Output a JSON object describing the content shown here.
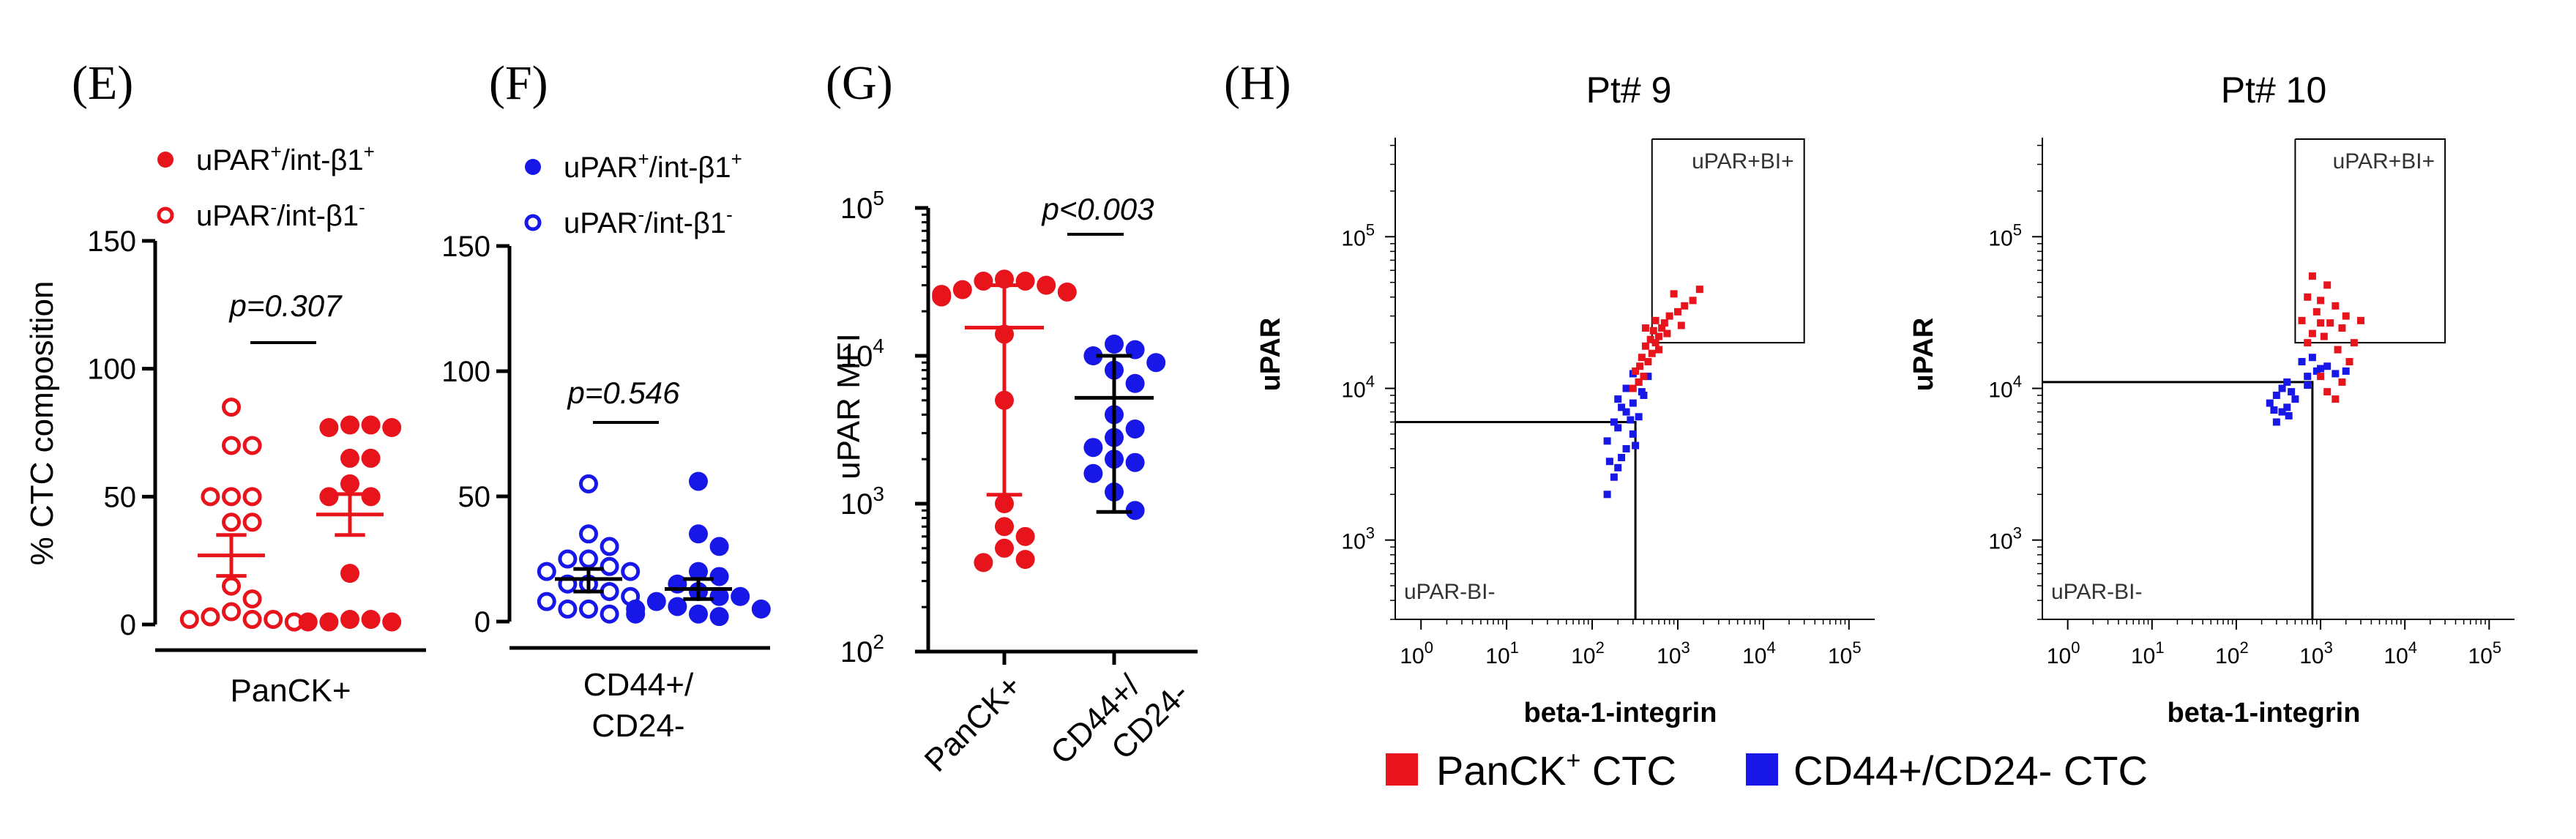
{
  "chart_data": [
    {
      "panel_label": "(E)",
      "type": "scatter",
      "ylabel": "% CTC composition",
      "ylim": [
        0,
        150
      ],
      "yticks": [
        "0",
        "50",
        "100",
        "150"
      ],
      "xlabel": "PanCK+",
      "legend": [
        {
          "label": "uPAR",
          "sup": "+",
          "mid": "/int-β1",
          "sup2": "+",
          "marker": "filled",
          "color": "#e8141c"
        },
        {
          "label": "uPAR",
          "sup": "-",
          "mid": "/int-β1",
          "sup2": "-",
          "marker": "open",
          "color": "#e8141c"
        }
      ],
      "annotation": "p=0.307",
      "series": [
        {
          "name": "uPAR-/int-β1-",
          "marker": "open",
          "color": "#e8141c",
          "values": [
            85,
            70,
            70,
            50,
            50,
            50,
            40,
            40,
            15,
            10,
            5,
            3,
            2,
            2,
            2,
            1
          ],
          "mean": 27,
          "sem_low": 19,
          "sem_high": 35
        },
        {
          "name": "uPAR+/int-β1+",
          "marker": "filled",
          "color": "#e8141c",
          "values": [
            78,
            78,
            77,
            77,
            65,
            65,
            55,
            50,
            50,
            20,
            2,
            2,
            1,
            1,
            1
          ],
          "mean": 43,
          "sem_low": 35,
          "sem_high": 51
        }
      ]
    },
    {
      "panel_label": "(F)",
      "type": "scatter",
      "ylim": [
        0,
        150
      ],
      "yticks": [
        "0",
        "50",
        "100",
        "150"
      ],
      "xlabel_lines": [
        "CD44+/",
        "CD24-"
      ],
      "legend": [
        {
          "label": "uPAR",
          "sup": "+",
          "mid": "/int-β1",
          "sup2": "+",
          "marker": "filled",
          "color": "#1717e8"
        },
        {
          "label": "uPAR",
          "sup": "-",
          "mid": "/int-β1",
          "sup2": "-",
          "marker": "open",
          "color": "#1717e8"
        }
      ],
      "annotation": "p=0.546",
      "series": [
        {
          "name": "uPAR-/int-β1-",
          "marker": "open",
          "color": "#1717e8",
          "values": [
            55,
            35,
            30,
            25,
            25,
            22,
            20,
            20,
            15,
            15,
            12,
            10,
            8,
            5,
            5,
            3
          ],
          "mean": 17,
          "sem_low": 12,
          "sem_high": 21
        },
        {
          "name": "uPAR+/int-β1+",
          "marker": "filled",
          "color": "#1717e8",
          "values": [
            56,
            35,
            30,
            20,
            18,
            15,
            12,
            10,
            10,
            8,
            6,
            5,
            5,
            3,
            3,
            2
          ],
          "mean": 13,
          "sem_low": 9,
          "sem_high": 17
        }
      ]
    },
    {
      "panel_label": "(G)",
      "type": "scatter",
      "yscale": "log",
      "ylabel": "uPAR MFI",
      "ylim": [
        100,
        100000
      ],
      "yticks": [
        {
          "base": "10",
          "exp": "2"
        },
        {
          "base": "10",
          "exp": "3"
        },
        {
          "base": "10",
          "exp": "4"
        },
        {
          "base": "10",
          "exp": "5"
        }
      ],
      "categories": [
        "PanCK+",
        "CD44+/CD24-"
      ],
      "annotation": "p<0.003",
      "series": [
        {
          "name": "PanCK+",
          "marker": "filled",
          "color": "#e8141c",
          "values": [
            33000,
            32000,
            32000,
            30000,
            28000,
            27000,
            26000,
            25000,
            14000,
            5000,
            1000,
            700,
            600,
            500,
            420,
            400
          ],
          "mean": 15500,
          "sd_low": 1150,
          "sd_high": 30000
        },
        {
          "name": "CD44+/CD24-",
          "marker": "filled",
          "color": "#1717e8",
          "values": [
            12000,
            11000,
            10000,
            9000,
            8000,
            6500,
            4000,
            3200,
            2800,
            2400,
            2000,
            1900,
            1600,
            1200,
            900
          ],
          "mean": 5200,
          "sd_low": 880,
          "sd_high": 10000
        }
      ]
    },
    {
      "panel_label": "(H)",
      "type": "scatter",
      "title": "Pt# 9",
      "xscale": "log",
      "yscale": "log",
      "xlabel": "beta-1-integrin",
      "ylabel": "uPAR",
      "xlim": [
        0.5,
        200000
      ],
      "ylim": [
        300,
        450000
      ],
      "gate_x": 320,
      "gate_y": 6000,
      "gate_upper": {
        "x0": 500,
        "y0": 20000,
        "x1": 30000
      },
      "gate_labels": [
        "uPAR+BI+",
        "uPAR-BI-"
      ],
      "series": [
        {
          "name": "PanCK+ CTC",
          "color": "#e8141c",
          "points": [
            [
              300,
              10000
            ],
            [
              350,
              11000
            ],
            [
              400,
              12000
            ],
            [
              320,
              13000
            ],
            [
              450,
              15000
            ],
            [
              380,
              16000
            ],
            [
              500,
              17000
            ],
            [
              420,
              19000
            ],
            [
              550,
              20000
            ],
            [
              480,
              21000
            ],
            [
              600,
              22000
            ],
            [
              520,
              24000
            ],
            [
              650,
              25000
            ],
            [
              700,
              27000
            ],
            [
              800,
              30000
            ],
            [
              1000,
              32000
            ],
            [
              1200,
              35000
            ],
            [
              1500,
              38000
            ],
            [
              900,
              42000
            ],
            [
              1800,
              45000
            ],
            [
              420,
              25000
            ],
            [
              600,
              18000
            ],
            [
              360,
              14000
            ],
            [
              750,
              23000
            ],
            [
              1100,
              26000
            ],
            [
              550,
              28000
            ]
          ]
        },
        {
          "name": "CD44+/CD24- CTC",
          "color": "#1717e8",
          "points": [
            [
              150,
              2000
            ],
            [
              180,
              2600
            ],
            [
              200,
              3000
            ],
            [
              220,
              3500
            ],
            [
              250,
              4000
            ],
            [
              150,
              4500
            ],
            [
              300,
              5000
            ],
            [
              200,
              5500
            ],
            [
              180,
              6000
            ],
            [
              350,
              6500
            ],
            [
              250,
              7000
            ],
            [
              300,
              8000
            ],
            [
              200,
              8500
            ],
            [
              400,
              9000
            ],
            [
              250,
              10000
            ],
            [
              350,
              11000
            ],
            [
              450,
              12000
            ],
            [
              300,
              12500
            ],
            [
              220,
              7500
            ],
            [
              280,
              6200
            ],
            [
              320,
              4200
            ],
            [
              380,
              9500
            ],
            [
              160,
              3300
            ]
          ]
        }
      ]
    },
    {
      "panel_label": "",
      "type": "scatter",
      "title": "Pt# 10",
      "xscale": "log",
      "yscale": "log",
      "xlabel": "beta-1-integrin",
      "ylabel": "uPAR",
      "xlim": [
        0.5,
        200000
      ],
      "ylim": [
        300,
        450000
      ],
      "gate_x": 800,
      "gate_y": 11000,
      "gate_upper": {
        "x0": 500,
        "y0": 20000,
        "x1": 30000
      },
      "gate_labels": [
        "uPAR+BI+",
        "uPAR-BI-"
      ],
      "series": [
        {
          "name": "PanCK+ CTC",
          "color": "#e8141c",
          "points": [
            [
              800,
              55000
            ],
            [
              1200,
              48000
            ],
            [
              700,
              40000
            ],
            [
              1000,
              38000
            ],
            [
              1500,
              35000
            ],
            [
              900,
              32000
            ],
            [
              2000,
              30000
            ],
            [
              600,
              28000
            ],
            [
              1300,
              27000
            ],
            [
              3000,
              28000
            ],
            [
              1800,
              25000
            ],
            [
              800,
              23000
            ],
            [
              1100,
              22000
            ],
            [
              2500,
              20000
            ],
            [
              700,
              20000
            ],
            [
              1600,
              18000
            ],
            [
              1000,
              12000
            ],
            [
              1200,
              9500
            ],
            [
              1500,
              8500
            ],
            [
              1800,
              11000
            ],
            [
              2200,
              15000
            ],
            [
              1000,
              27000
            ]
          ]
        },
        {
          "name": "CD44+/CD24- CTC",
          "color": "#1717e8",
          "points": [
            [
              300,
              6000
            ],
            [
              350,
              7000
            ],
            [
              400,
              7500
            ],
            [
              250,
              8000
            ],
            [
              300,
              9000
            ],
            [
              450,
              9500
            ],
            [
              350,
              10000
            ],
            [
              400,
              11000
            ],
            [
              700,
              12000
            ],
            [
              900,
              13000
            ],
            [
              1200,
              14000
            ],
            [
              600,
              15000
            ],
            [
              800,
              16000
            ],
            [
              1000,
              13500
            ],
            [
              1500,
              12500
            ],
            [
              2000,
              13000
            ],
            [
              500,
              8500
            ],
            [
              280,
              7200
            ],
            [
              420,
              6600
            ],
            [
              700,
              10500
            ]
          ]
        }
      ]
    }
  ],
  "figure_legend": [
    {
      "label": "PanCK",
      "sup": "+",
      "suffix": " CTC",
      "color": "#e8141c"
    },
    {
      "label": "CD44+/CD24- CTC",
      "sup": "",
      "suffix": "",
      "color": "#1717e8"
    }
  ]
}
